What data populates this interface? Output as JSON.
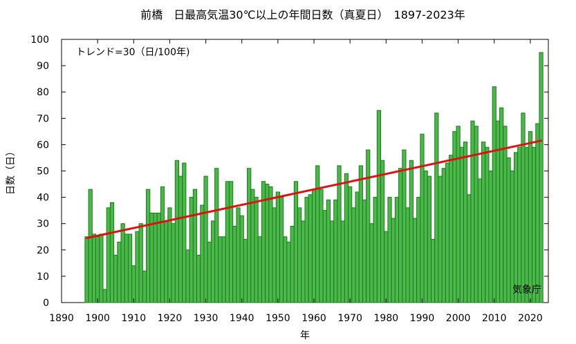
{
  "chart_data": {
    "type": "bar",
    "title": "前橋　日最高気温30℃以上の年間日数（真夏日）　1897-2023年",
    "xlabel": "年",
    "ylabel": "日数（日）",
    "trend_label": "トレンド=30（日/100年)",
    "source_label": "気象庁",
    "xlim": [
      1890,
      2025
    ],
    "ylim": [
      0,
      100
    ],
    "xticks": [
      1890,
      1900,
      1910,
      1920,
      1930,
      1940,
      1950,
      1960,
      1970,
      1980,
      1990,
      2000,
      2010,
      2020
    ],
    "yticks": [
      0,
      10,
      20,
      30,
      40,
      50,
      60,
      70,
      80,
      90,
      100
    ],
    "grid": false,
    "colors": {
      "bar_fill": "#4cb84c",
      "bar_edge": "#1a7a1a",
      "trend": "#e01010"
    },
    "x": [
      1897,
      1898,
      1899,
      1900,
      1901,
      1902,
      1903,
      1904,
      1905,
      1906,
      1907,
      1908,
      1909,
      1910,
      1911,
      1912,
      1913,
      1914,
      1915,
      1916,
      1917,
      1918,
      1919,
      1920,
      1921,
      1922,
      1923,
      1924,
      1925,
      1926,
      1927,
      1928,
      1929,
      1930,
      1931,
      1932,
      1933,
      1934,
      1935,
      1936,
      1937,
      1938,
      1939,
      1940,
      1941,
      1942,
      1943,
      1944,
      1945,
      1946,
      1947,
      1948,
      1949,
      1950,
      1951,
      1952,
      1953,
      1954,
      1955,
      1956,
      1957,
      1958,
      1959,
      1960,
      1961,
      1962,
      1963,
      1964,
      1965,
      1966,
      1967,
      1968,
      1969,
      1970,
      1971,
      1972,
      1973,
      1974,
      1975,
      1976,
      1977,
      1978,
      1979,
      1980,
      1981,
      1982,
      1983,
      1984,
      1985,
      1986,
      1987,
      1988,
      1989,
      1990,
      1991,
      1992,
      1993,
      1994,
      1995,
      1996,
      1997,
      1998,
      1999,
      2000,
      2001,
      2002,
      2003,
      2004,
      2005,
      2006,
      2007,
      2008,
      2009,
      2010,
      2011,
      2012,
      2013,
      2014,
      2015,
      2016,
      2017,
      2018,
      2019,
      2020,
      2021,
      2022,
      2023
    ],
    "values": [
      25,
      43,
      26,
      25,
      26,
      5,
      36,
      38,
      18,
      23,
      30,
      26,
      26,
      14,
      27,
      30,
      12,
      43,
      34,
      34,
      34,
      44,
      31,
      36,
      30,
      54,
      48,
      53,
      20,
      40,
      43,
      18,
      37,
      48,
      23,
      31,
      51,
      25,
      25,
      46,
      46,
      29,
      36,
      33,
      24,
      51,
      43,
      40,
      25,
      46,
      45,
      44,
      36,
      42,
      40,
      25,
      23,
      29,
      46,
      36,
      31,
      40,
      41,
      43,
      52,
      43,
      35,
      39,
      31,
      39,
      52,
      31,
      49,
      44,
      36,
      42,
      52,
      39,
      58,
      30,
      40,
      73,
      54,
      27,
      40,
      32,
      40,
      51,
      58,
      36,
      54,
      32,
      40,
      64,
      50,
      48,
      24,
      72,
      48,
      51,
      53,
      56,
      65,
      67,
      59,
      61,
      41,
      69,
      67,
      47,
      61,
      59,
      50,
      82,
      69,
      74,
      67,
      55,
      50,
      57,
      59,
      72,
      59,
      65,
      59,
      68,
      95
    ],
    "trend": {
      "x0": 1897,
      "y0": 24.5,
      "x1": 2023,
      "y1": 61.5
    }
  }
}
